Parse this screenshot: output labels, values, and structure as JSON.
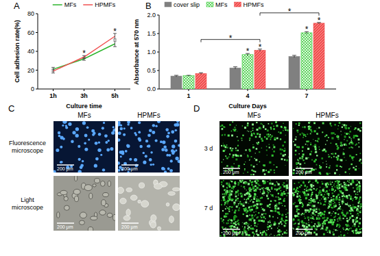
{
  "chart_data": [
    {
      "type": "line",
      "title": "A",
      "xlabel": "Culture time",
      "ylabel": "Cell adhesion rate(%)",
      "categories": [
        "1h",
        "3h",
        "5h"
      ],
      "series": [
        {
          "name": "MFs",
          "color": "#2db52d",
          "values": [
            21,
            32,
            48
          ],
          "errors": [
            2,
            1.5,
            3
          ]
        },
        {
          "name": "HPMFs",
          "color": "#f05050",
          "values": [
            19,
            34,
            56
          ],
          "errors": [
            2,
            1.5,
            3
          ]
        }
      ],
      "ylim": [
        0,
        80
      ],
      "yticks": [
        0,
        20,
        40,
        60,
        80
      ],
      "legend": "top",
      "annotations": [
        {
          "text": "*",
          "category": "3h"
        },
        {
          "text": "*",
          "category": "5h"
        }
      ]
    },
    {
      "type": "bar",
      "title": "B",
      "xlabel": "Culture Days",
      "ylabel": "Absorbance at 570 nm",
      "categories": [
        "1",
        "4",
        "7"
      ],
      "series": [
        {
          "name": "cover slip",
          "color": "#808080",
          "values": [
            0.35,
            0.57,
            0.88
          ],
          "errors": [
            0.02,
            0.03,
            0.03
          ]
        },
        {
          "name": "MFs",
          "color": "#33cc33",
          "values": [
            0.36,
            0.93,
            1.52
          ],
          "errors": [
            0.01,
            0.03,
            0.03
          ]
        },
        {
          "name": "HPMFs",
          "color": "#f05050",
          "values": [
            0.42,
            1.05,
            1.78
          ],
          "errors": [
            0.02,
            0.03,
            0.02
          ]
        }
      ],
      "ylim": [
        0,
        2
      ],
      "yticks": [
        {
          "value": 0,
          "label": "0.0"
        },
        {
          "value": 0.5,
          "label": "0.5"
        },
        {
          "value": 1,
          "label": "1.0"
        },
        {
          "value": 1.5,
          "label": "1.5"
        },
        {
          "value": 2,
          "label": "2.0"
        }
      ],
      "legend": "top-left",
      "annotations": [
        {
          "text": "*",
          "category": "4",
          "series": "MFs"
        },
        {
          "text": "*",
          "category": "4",
          "series": "HPMFs"
        },
        {
          "text": "*",
          "category": "7",
          "series": "MFs"
        },
        {
          "text": "*",
          "category": "7",
          "series": "HPMFs"
        },
        {
          "text": "*",
          "from": "1",
          "to": "4",
          "series": "HPMFs"
        },
        {
          "text": "*",
          "from": "4",
          "to": "7",
          "series": "HPMFs"
        }
      ]
    }
  ],
  "image_panels": [
    {
      "label": "C",
      "columns": [
        "MFs",
        "HPMFs"
      ],
      "rows": [
        "Fluorescence microscope",
        "Light microscope"
      ],
      "scale_bar": "200 μm"
    },
    {
      "label": "D",
      "columns": [
        "MFs",
        "HPMFs"
      ],
      "rows": [
        "3 d",
        "7 d"
      ],
      "scale_bar": "200 μm"
    }
  ]
}
